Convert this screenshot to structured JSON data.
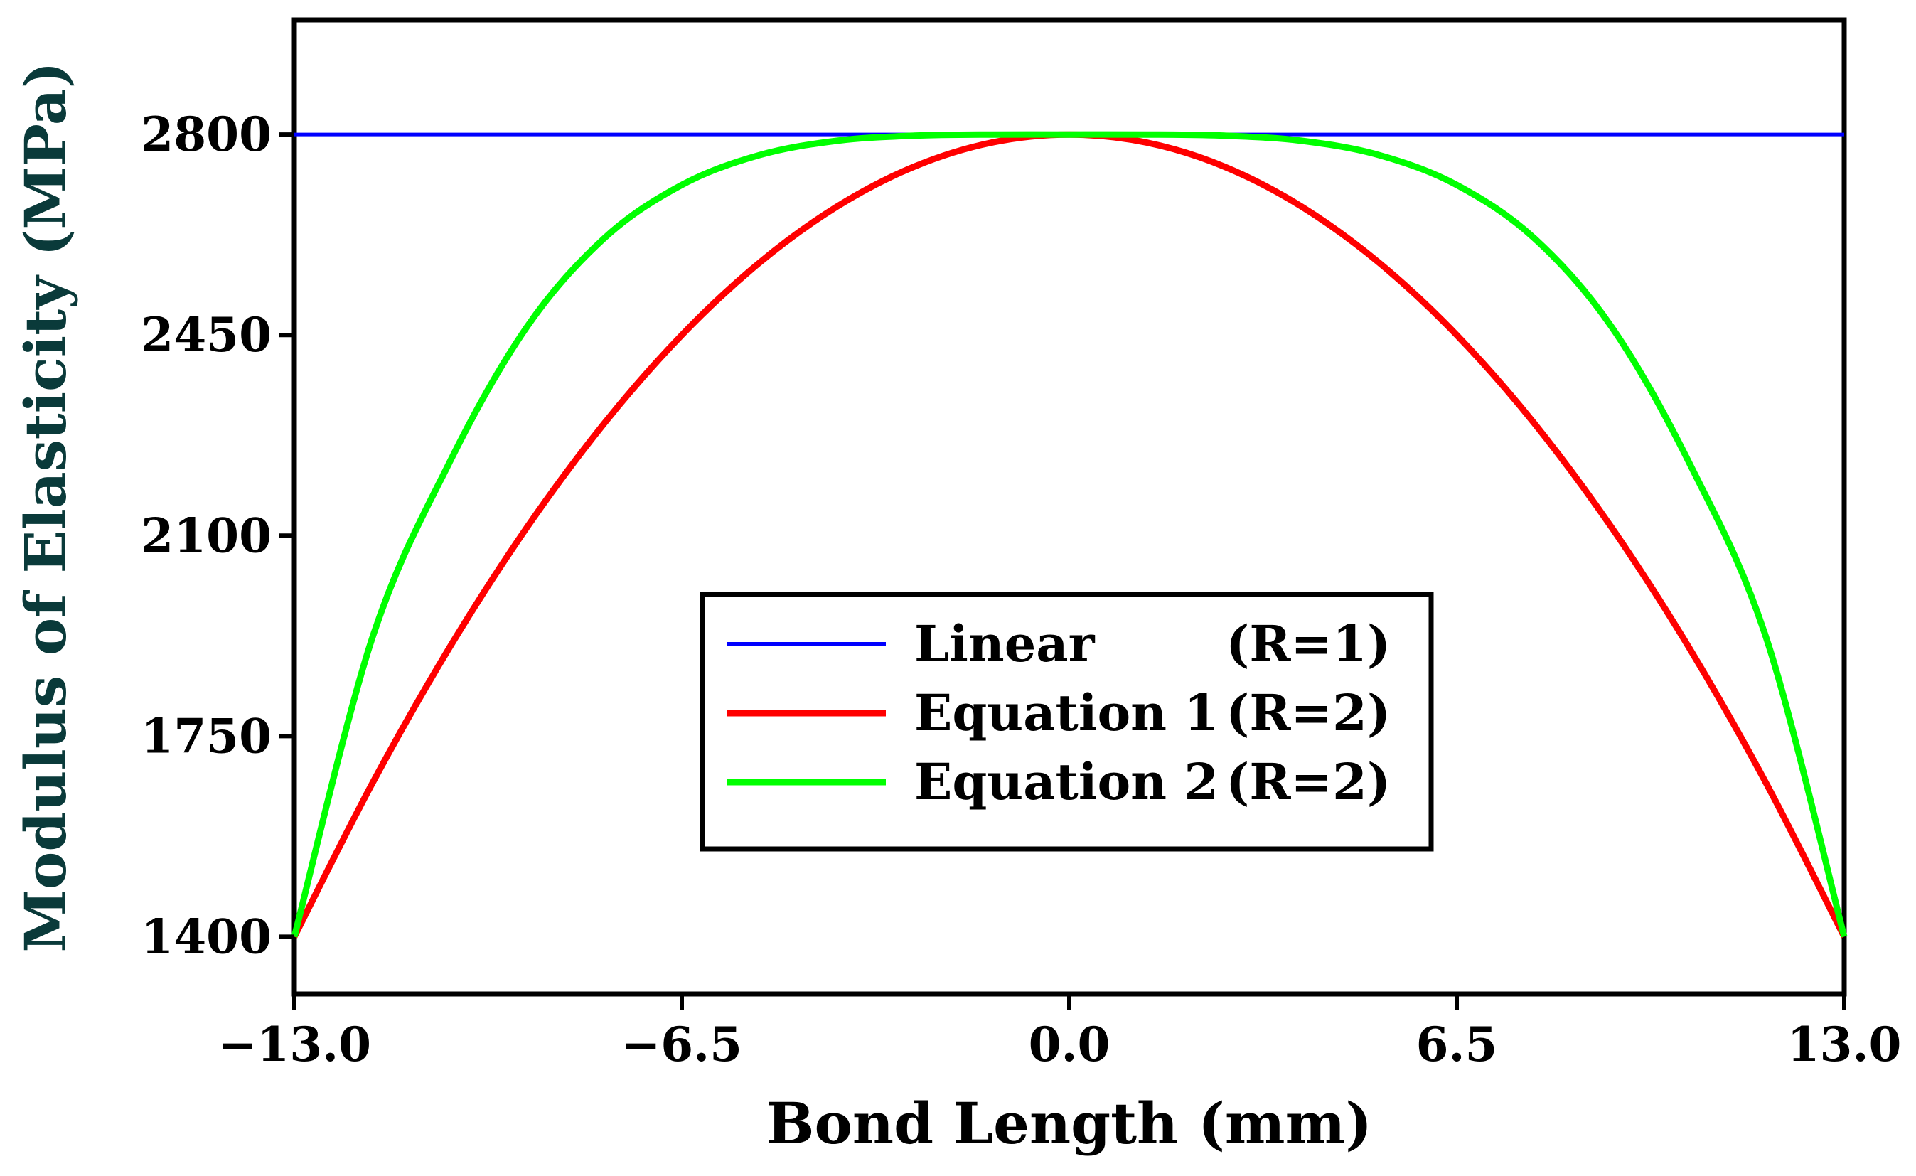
{
  "chart_data": {
    "type": "line",
    "xlabel": "Bond Length (mm)",
    "ylabel": "Modulus of Elasticity (MPa)",
    "xlim": [
      -13.0,
      13.0
    ],
    "ylim": [
      1300,
      3000
    ],
    "xticks": [
      -13.0,
      -6.5,
      0.0,
      6.5,
      13.0
    ],
    "xtick_labels": [
      "−13.0",
      "−6.5",
      "0.0",
      "6.5",
      "13.0"
    ],
    "yticks": [
      1400,
      1750,
      2100,
      2450,
      2800
    ],
    "ytick_labels": [
      "1400",
      "1750",
      "2100",
      "2450",
      "2800"
    ],
    "grid": false,
    "legend_position": "lower-center",
    "series": [
      {
        "name": "Linear",
        "annotation": "(R=1)",
        "color": "#0000ff",
        "x": [
          -13.0,
          -6.5,
          0.0,
          6.5,
          13.0
        ],
        "y": [
          2800,
          2800,
          2800,
          2800,
          2800
        ]
      },
      {
        "name": "Equation 1",
        "annotation": "(R=2)",
        "color": "#ff0000",
        "x": [
          -13.0,
          -11.7,
          -10.4,
          -9.1,
          -7.8,
          -6.5,
          -5.2,
          -3.9,
          -2.6,
          -1.3,
          0.0,
          1.3,
          2.6,
          3.9,
          5.2,
          6.5,
          7.8,
          9.1,
          10.4,
          11.7,
          13.0
        ],
        "y": [
          1400,
          1666,
          1904,
          2114,
          2296,
          2450,
          2576,
          2674,
          2744,
          2786,
          2800,
          2786,
          2744,
          2674,
          2576,
          2450,
          2296,
          2114,
          1904,
          1666,
          1400
        ]
      },
      {
        "name": "Equation 2",
        "annotation": "(R=2)",
        "color": "#00ff00",
        "x": [
          -13.0,
          -11.7,
          -10.4,
          -9.1,
          -7.8,
          -6.5,
          -5.2,
          -3.9,
          -2.6,
          -1.3,
          0.0,
          1.3,
          2.6,
          3.9,
          5.2,
          6.5,
          7.8,
          9.1,
          10.4,
          11.7,
          13.0
        ],
        "y": [
          1400,
          1919,
          2227,
          2464,
          2619,
          2712,
          2764,
          2789,
          2798,
          2800,
          2800,
          2800,
          2798,
          2789,
          2764,
          2712,
          2619,
          2464,
          2227,
          1919,
          1400
        ]
      }
    ]
  }
}
